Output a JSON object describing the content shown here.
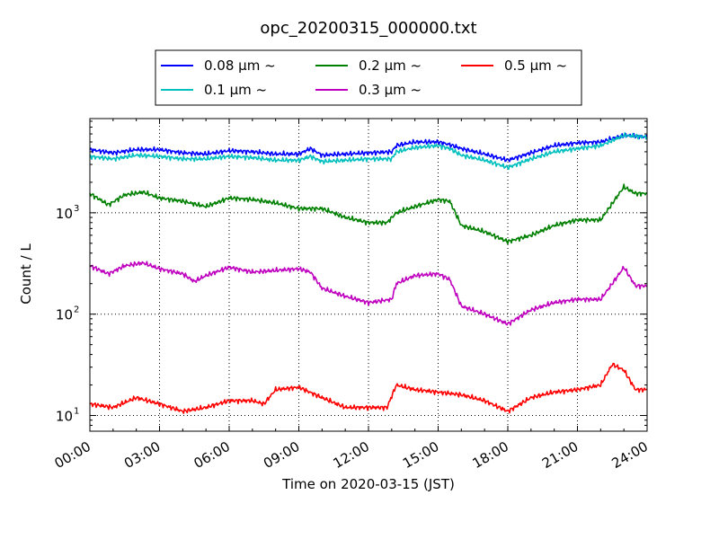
{
  "chart_data": {
    "type": "line",
    "title": "opc_20200315_000000.txt",
    "xlabel": "Time on 2020-03-15 (JST)",
    "ylabel": "Count / L",
    "yscale": "log",
    "grid": true,
    "legend_position": "top (above plot)",
    "x_ticks": [
      "00:00",
      "03:00",
      "06:00",
      "09:00",
      "12:00",
      "15:00",
      "18:00",
      "21:00",
      "24:00"
    ],
    "y_ticks": [
      "10",
      "10",
      "10"
    ],
    "y_tick_exponents": [
      "1",
      "2",
      "3"
    ],
    "y_tick_values": [
      10,
      100,
      1000
    ],
    "ylim": [
      7,
      8500
    ],
    "x_hours_range": [
      0,
      24
    ],
    "series": [
      {
        "name": "0.08 μm ~",
        "color": "#0000ff",
        "x_hours": [
          0,
          1,
          2,
          3,
          4,
          5,
          6,
          7,
          8,
          9,
          9.5,
          10,
          11,
          12,
          13,
          13.2,
          14,
          15,
          15.5,
          16,
          17,
          18,
          19,
          20,
          21,
          22,
          23,
          24
        ],
        "values": [
          4200,
          3900,
          4200,
          4200,
          3900,
          3800,
          4100,
          4000,
          3800,
          3800,
          4300,
          3700,
          3800,
          3900,
          4000,
          4600,
          5000,
          5000,
          4700,
          4300,
          3800,
          3300,
          3900,
          4600,
          4900,
          5000,
          5800,
          5600
        ]
      },
      {
        "name": "0.1 μm ~",
        "color": "#00bfbf",
        "x_hours": [
          0,
          1,
          2,
          3,
          4,
          5,
          6,
          7,
          8,
          9,
          9.5,
          10,
          11,
          12,
          13,
          13.2,
          14,
          15,
          15.5,
          16,
          17,
          18,
          19,
          20,
          21,
          22,
          23,
          24
        ],
        "values": [
          3600,
          3400,
          3700,
          3600,
          3400,
          3400,
          3600,
          3500,
          3300,
          3300,
          3600,
          3200,
          3300,
          3400,
          3400,
          4000,
          4400,
          4600,
          4300,
          3700,
          3300,
          2800,
          3400,
          4000,
          4300,
          4600,
          5800,
          5600
        ]
      },
      {
        "name": "0.2 μm ~",
        "color": "#008000",
        "x_hours": [
          0,
          0.8,
          1.5,
          2.3,
          3,
          4,
          5,
          6,
          7,
          8,
          9,
          10,
          11,
          12,
          12.8,
          13.2,
          14,
          15,
          15.5,
          16,
          17,
          18,
          19,
          20,
          21,
          22,
          23,
          23.5,
          24
        ],
        "values": [
          1550,
          1200,
          1500,
          1600,
          1400,
          1300,
          1150,
          1400,
          1350,
          1250,
          1100,
          1100,
          900,
          800,
          800,
          1000,
          1150,
          1350,
          1300,
          750,
          650,
          520,
          600,
          750,
          850,
          850,
          1800,
          1550,
          1550
        ]
      },
      {
        "name": "0.3 μm ~",
        "color": "#bf00bf",
        "x_hours": [
          0,
          0.8,
          1.5,
          2.3,
          3,
          4,
          4.5,
          5,
          6,
          7,
          8,
          9,
          9.5,
          10,
          11,
          12,
          13,
          13.2,
          14,
          15,
          15.5,
          16,
          17,
          18,
          19,
          20,
          21,
          22,
          22.5,
          23,
          23.5,
          24
        ],
        "values": [
          300,
          250,
          300,
          320,
          280,
          250,
          210,
          240,
          290,
          260,
          270,
          280,
          260,
          180,
          150,
          130,
          140,
          200,
          240,
          250,
          220,
          120,
          100,
          80,
          110,
          130,
          140,
          140,
          200,
          290,
          190,
          190
        ]
      },
      {
        "name": "0.5 μm ~",
        "color": "#ff0000",
        "x_hours": [
          0,
          1,
          2,
          3,
          4,
          5,
          6,
          7,
          7.5,
          8,
          9,
          10,
          11,
          12,
          12.8,
          13.2,
          14,
          15,
          16,
          17,
          18,
          19,
          20,
          21,
          22,
          22.5,
          23,
          23.5,
          24
        ],
        "values": [
          13,
          12,
          15,
          13,
          11,
          12,
          14,
          14,
          13,
          18,
          19,
          15,
          12,
          12,
          12,
          20,
          18,
          17,
          16,
          14,
          11,
          15,
          17,
          18,
          20,
          32,
          28,
          18,
          18
        ]
      }
    ]
  }
}
